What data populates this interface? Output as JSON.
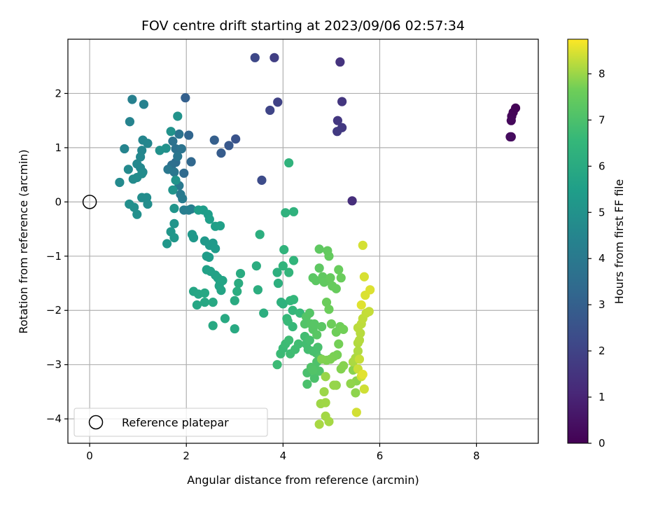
{
  "chart_data": {
    "type": "scatter",
    "title": "FOV centre drift starting at 2023/09/06 02:57:34",
    "xlabel": "Angular distance from reference (arcmin)",
    "ylabel": "Rotation from reference (arcmin)",
    "xlim": [
      -0.45,
      9.28
    ],
    "ylim": [
      -4.45,
      3.0
    ],
    "xticks": [
      0,
      2,
      4,
      6,
      8
    ],
    "yticks": [
      -4,
      -3,
      -2,
      -1,
      0,
      1,
      2
    ],
    "grid": true,
    "legend": {
      "placement": "lower-left",
      "entries": [
        "Reference platepar"
      ]
    },
    "colorbar": {
      "label": "Hours from first FF file",
      "colormap": "viridis",
      "range": [
        0,
        8.75
      ],
      "ticks": [
        0,
        1,
        2,
        3,
        4,
        5,
        6,
        7,
        8
      ]
    },
    "reference_point": {
      "x": 0,
      "y": 0,
      "label": "Reference platepar"
    },
    "points": [
      [
        8.81,
        1.73,
        0.05
      ],
      [
        8.76,
        1.65,
        0.1
      ],
      [
        8.73,
        1.58,
        0.15
      ],
      [
        8.72,
        1.5,
        0.2
      ],
      [
        8.72,
        1.2,
        0.25
      ],
      [
        8.7,
        1.2,
        0.3
      ],
      [
        5.43,
        0.02,
        1.3
      ],
      [
        5.18,
        2.58,
        1.45
      ],
      [
        5.22,
        1.85,
        1.55
      ],
      [
        5.13,
        1.5,
        1.6
      ],
      [
        5.22,
        1.37,
        1.65
      ],
      [
        5.12,
        1.3,
        1.7
      ],
      [
        3.82,
        2.66,
        1.85
      ],
      [
        3.89,
        1.84,
        1.95
      ],
      [
        3.73,
        1.69,
        2.05
      ],
      [
        3.42,
        2.66,
        2.15
      ],
      [
        3.56,
        0.4,
        2.3
      ],
      [
        3.02,
        1.16,
        2.55
      ],
      [
        2.88,
        1.04,
        2.7
      ],
      [
        2.72,
        0.9,
        2.85
      ],
      [
        2.58,
        1.14,
        2.95
      ],
      [
        1.98,
        1.92,
        3.0
      ],
      [
        2.05,
        1.23,
        3.2
      ],
      [
        2.1,
        0.74,
        3.3
      ],
      [
        1.95,
        0.53,
        3.4
      ],
      [
        1.78,
        0.73,
        3.5
      ],
      [
        1.7,
        0.68,
        3.6
      ],
      [
        1.78,
        0.98,
        3.65
      ],
      [
        1.72,
        1.12,
        3.7
      ],
      [
        1.85,
        1.25,
        3.75
      ],
      [
        1.9,
        0.98,
        3.8
      ],
      [
        1.82,
        0.84,
        3.85
      ],
      [
        1.75,
        0.55,
        3.9
      ],
      [
        1.62,
        0.6,
        3.95
      ],
      [
        1.85,
        0.3,
        4.0
      ],
      [
        1.88,
        0.14,
        4.05
      ],
      [
        1.92,
        0.06,
        4.1
      ],
      [
        1.95,
        -0.15,
        4.15
      ],
      [
        2.05,
        -0.15,
        4.2
      ],
      [
        2.1,
        -0.13,
        4.25
      ],
      [
        0.88,
        1.89,
        4.3
      ],
      [
        1.12,
        1.8,
        4.35
      ],
      [
        0.83,
        1.48,
        4.4
      ],
      [
        0.72,
        0.98,
        4.45
      ],
      [
        1.1,
        1.14,
        4.5
      ],
      [
        1.2,
        1.08,
        4.52
      ],
      [
        1.08,
        0.95,
        4.55
      ],
      [
        1.05,
        0.83,
        4.58
      ],
      [
        0.98,
        0.7,
        4.6
      ],
      [
        1.05,
        0.63,
        4.62
      ],
      [
        1.1,
        0.55,
        4.65
      ],
      [
        0.8,
        0.6,
        4.68
      ],
      [
        0.62,
        0.36,
        4.7
      ],
      [
        0.9,
        0.42,
        4.72
      ],
      [
        0.98,
        0.45,
        4.75
      ],
      [
        1.08,
        0.52,
        4.78
      ],
      [
        1.08,
        0.08,
        4.8
      ],
      [
        1.18,
        0.08,
        4.82
      ],
      [
        1.2,
        -0.04,
        4.85
      ],
      [
        0.82,
        -0.04,
        4.88
      ],
      [
        0.92,
        -0.1,
        4.9
      ],
      [
        0.98,
        -0.23,
        4.92
      ],
      [
        1.45,
        0.95,
        4.95
      ],
      [
        1.58,
        0.99,
        4.97
      ],
      [
        1.68,
        1.3,
        5.0
      ],
      [
        1.82,
        1.58,
        5.02
      ],
      [
        1.78,
        0.4,
        5.05
      ],
      [
        1.72,
        0.22,
        5.08
      ],
      [
        1.75,
        -0.12,
        5.1
      ],
      [
        1.75,
        -0.4,
        5.12
      ],
      [
        1.68,
        -0.55,
        5.15
      ],
      [
        1.75,
        -0.66,
        5.18
      ],
      [
        1.6,
        -0.77,
        5.2
      ],
      [
        2.12,
        -0.6,
        5.22
      ],
      [
        2.15,
        -0.66,
        5.25
      ],
      [
        2.38,
        -0.72,
        5.28
      ],
      [
        2.48,
        -0.8,
        5.3
      ],
      [
        2.55,
        -0.76,
        5.32
      ],
      [
        2.6,
        -0.86,
        5.35
      ],
      [
        2.42,
        -1.0,
        5.38
      ],
      [
        2.47,
        -1.02,
        5.4
      ],
      [
        2.35,
        -0.15,
        5.42
      ],
      [
        2.25,
        -0.15,
        5.45
      ],
      [
        2.45,
        -0.23,
        5.48
      ],
      [
        2.48,
        -0.32,
        5.5
      ],
      [
        2.6,
        -0.45,
        5.52
      ],
      [
        2.7,
        -0.44,
        5.55
      ],
      [
        2.42,
        -1.25,
        5.58
      ],
      [
        2.5,
        -1.28,
        5.6
      ],
      [
        2.6,
        -1.35,
        5.62
      ],
      [
        2.65,
        -1.4,
        5.65
      ],
      [
        2.7,
        -1.48,
        5.68
      ],
      [
        2.68,
        -1.55,
        5.7
      ],
      [
        2.75,
        -1.45,
        5.72
      ],
      [
        2.72,
        -1.63,
        5.75
      ],
      [
        2.15,
        -1.65,
        5.78
      ],
      [
        2.25,
        -1.7,
        5.8
      ],
      [
        2.22,
        -1.9,
        5.82
      ],
      [
        2.38,
        -1.68,
        5.85
      ],
      [
        2.38,
        -1.85,
        5.88
      ],
      [
        2.55,
        -1.85,
        5.9
      ],
      [
        2.55,
        -2.28,
        5.92
      ],
      [
        2.8,
        -2.15,
        5.95
      ],
      [
        3.0,
        -2.34,
        5.97
      ],
      [
        3.0,
        -1.82,
        6.0
      ],
      [
        3.12,
        -1.32,
        6.02
      ],
      [
        3.08,
        -1.5,
        6.05
      ],
      [
        3.05,
        -1.65,
        6.08
      ],
      [
        3.45,
        -1.18,
        6.1
      ],
      [
        3.48,
        -1.62,
        6.12
      ],
      [
        3.52,
        -0.6,
        6.15
      ],
      [
        3.6,
        -2.05,
        6.18
      ],
      [
        3.88,
        -1.3,
        6.2
      ],
      [
        3.9,
        -1.5,
        6.22
      ],
      [
        3.96,
        -1.85,
        6.25
      ],
      [
        4.0,
        -1.88,
        6.28
      ],
      [
        4.05,
        -0.2,
        6.3
      ],
      [
        4.22,
        -0.18,
        6.32
      ],
      [
        4.12,
        0.72,
        6.35
      ],
      [
        4.02,
        -0.88,
        6.38
      ],
      [
        4.0,
        -1.18,
        6.4
      ],
      [
        4.22,
        -1.08,
        6.42
      ],
      [
        4.12,
        -1.3,
        6.45
      ],
      [
        4.15,
        -1.82,
        6.48
      ],
      [
        4.22,
        -1.8,
        6.5
      ],
      [
        4.2,
        -2.0,
        6.52
      ],
      [
        4.08,
        -2.15,
        6.55
      ],
      [
        4.2,
        -2.3,
        6.58
      ],
      [
        4.35,
        -2.05,
        6.6
      ],
      [
        4.1,
        -2.2,
        6.62
      ],
      [
        4.0,
        -2.7,
        6.65
      ],
      [
        3.95,
        -2.8,
        6.68
      ],
      [
        3.88,
        -3.0,
        6.7
      ],
      [
        4.05,
        -2.62,
        6.72
      ],
      [
        4.12,
        -2.55,
        6.74
      ],
      [
        4.15,
        -2.8,
        6.76
      ],
      [
        4.25,
        -2.72,
        6.78
      ],
      [
        4.32,
        -2.62,
        6.8
      ],
      [
        4.45,
        -2.48,
        6.82
      ],
      [
        4.48,
        -2.62,
        6.84
      ],
      [
        4.52,
        -2.72,
        6.86
      ],
      [
        4.55,
        -2.55,
        6.88
      ],
      [
        4.62,
        -2.75,
        6.9
      ],
      [
        4.68,
        -2.78,
        6.92
      ],
      [
        4.72,
        -2.68,
        6.94
      ],
      [
        4.5,
        -3.15,
        6.96
      ],
      [
        4.5,
        -3.36,
        6.98
      ],
      [
        4.65,
        -3.25,
        7.0
      ],
      [
        4.65,
        -3.05,
        7.02
      ],
      [
        4.7,
        -2.95,
        7.04
      ],
      [
        4.75,
        -2.88,
        7.06
      ],
      [
        4.75,
        -3.12,
        7.08
      ],
      [
        4.58,
        -3.05,
        7.1
      ],
      [
        4.62,
        -3.1,
        7.12
      ],
      [
        4.45,
        -2.25,
        7.14
      ],
      [
        4.48,
        -2.12,
        7.16
      ],
      [
        4.55,
        -2.05,
        7.18
      ],
      [
        4.58,
        -2.25,
        7.2
      ],
      [
        4.62,
        -2.35,
        7.22
      ],
      [
        4.65,
        -2.25,
        7.24
      ],
      [
        4.7,
        -2.45,
        7.26
      ],
      [
        4.8,
        -2.3,
        7.28
      ],
      [
        4.62,
        -1.4,
        7.3
      ],
      [
        4.68,
        -1.45,
        7.32
      ],
      [
        4.75,
        -1.22,
        7.34
      ],
      [
        4.75,
        -0.87,
        7.36
      ],
      [
        4.82,
        -1.38,
        7.38
      ],
      [
        4.85,
        -1.48,
        7.4
      ],
      [
        4.95,
        -1.45,
        7.42
      ],
      [
        4.92,
        -0.9,
        7.44
      ],
      [
        4.95,
        -1.0,
        7.46
      ],
      [
        4.98,
        -1.4,
        7.48
      ],
      [
        5.02,
        -1.55,
        7.5
      ],
      [
        5.1,
        -1.6,
        7.52
      ],
      [
        5.15,
        -1.25,
        7.54
      ],
      [
        5.2,
        -1.4,
        7.56
      ],
      [
        4.9,
        -1.85,
        7.58
      ],
      [
        4.95,
        -1.98,
        7.6
      ],
      [
        5.0,
        -2.25,
        7.62
      ],
      [
        5.1,
        -2.4,
        7.64
      ],
      [
        5.18,
        -2.3,
        7.66
      ],
      [
        5.25,
        -2.35,
        7.68
      ],
      [
        5.15,
        -2.62,
        7.7
      ],
      [
        5.12,
        -2.82,
        7.72
      ],
      [
        5.05,
        -2.85,
        7.74
      ],
      [
        4.98,
        -2.9,
        7.76
      ],
      [
        4.9,
        -2.92,
        7.78
      ],
      [
        4.8,
        -2.9,
        7.8
      ],
      [
        5.2,
        -3.08,
        7.82
      ],
      [
        5.25,
        -3.02,
        7.84
      ],
      [
        5.45,
        -3.1,
        7.86
      ],
      [
        5.52,
        -3.3,
        7.88
      ],
      [
        5.5,
        -3.52,
        7.9
      ],
      [
        5.4,
        -3.35,
        7.92
      ],
      [
        5.1,
        -3.38,
        7.94
      ],
      [
        5.05,
        -3.38,
        7.96
      ],
      [
        4.88,
        -3.22,
        7.98
      ],
      [
        4.85,
        -3.5,
        8.0
      ],
      [
        4.78,
        -3.72,
        8.02
      ],
      [
        4.88,
        -3.7,
        8.04
      ],
      [
        4.88,
        -3.95,
        8.06
      ],
      [
        4.95,
        -4.05,
        8.08
      ],
      [
        4.75,
        -4.1,
        8.1
      ],
      [
        5.45,
        -2.95,
        8.12
      ],
      [
        5.5,
        -2.88,
        8.14
      ],
      [
        5.55,
        -2.75,
        8.16
      ],
      [
        5.55,
        -2.6,
        8.18
      ],
      [
        5.58,
        -2.55,
        8.2
      ],
      [
        5.6,
        -2.42,
        8.22
      ],
      [
        5.55,
        -2.32,
        8.24
      ],
      [
        5.62,
        -2.25,
        8.26
      ],
      [
        5.65,
        -2.15,
        8.28
      ],
      [
        5.72,
        -2.05,
        8.3
      ],
      [
        5.78,
        -2.02,
        8.32
      ],
      [
        5.58,
        -2.9,
        8.34
      ],
      [
        5.55,
        -3.08,
        8.36
      ],
      [
        5.62,
        -3.22,
        8.38
      ],
      [
        5.68,
        -3.45,
        8.4
      ],
      [
        5.52,
        -3.88,
        8.42
      ],
      [
        5.65,
        -0.8,
        8.44
      ],
      [
        5.68,
        -1.38,
        8.46
      ],
      [
        5.7,
        -1.72,
        8.48
      ],
      [
        5.8,
        -1.62,
        8.5
      ],
      [
        5.62,
        -1.9,
        8.52
      ],
      [
        5.65,
        -3.18,
        8.54
      ]
    ]
  }
}
